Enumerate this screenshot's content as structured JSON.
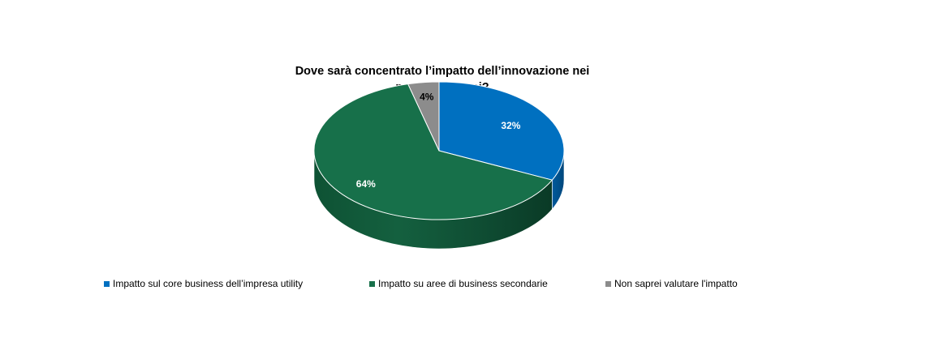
{
  "chart_data": {
    "type": "pie",
    "title_lines": [
      "Dove sarà concentrato l’impatto dell’innovazione nei",
      "prossimi 3 anni?"
    ],
    "style": "3d",
    "slices": [
      {
        "name": "Impatto sul core business dell’impresa utility",
        "value": 32,
        "label": "32%",
        "color": "#0070C0"
      },
      {
        "name": "Impatto su aree di business secondarie",
        "value": 64,
        "label": "64%",
        "color": "#17704A"
      },
      {
        "name": "Non saprei valutare l'impatto",
        "value": 4,
        "label": "4%",
        "color": "#8C8C8C"
      }
    ],
    "legend_position": "bottom"
  }
}
